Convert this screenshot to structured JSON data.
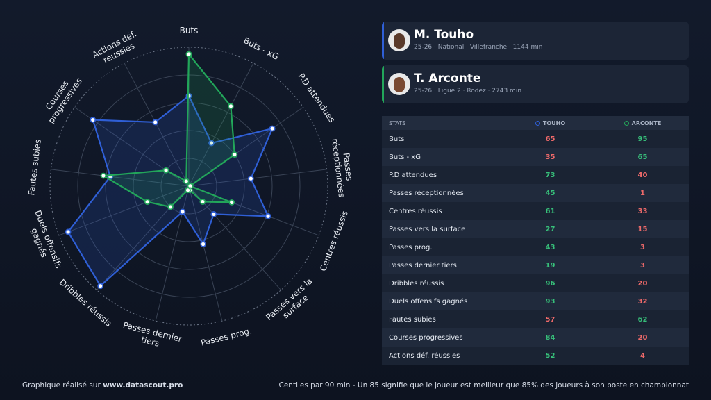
{
  "chart_data": {
    "type": "radar",
    "categories": [
      "Buts",
      "Buts - xG",
      "P.D attendues",
      "Passes réceptionnées",
      "Centres réussis",
      "Passes vers la surface",
      "Passes prog.",
      "Passes dernier tiers",
      "Dribbles réussis",
      "Duels offensifs gagnés",
      "Fautes subies",
      "Courses progressives",
      "Actions déf. réussies"
    ],
    "series": [
      {
        "name": "M. Touho",
        "details": "25-26 · National · Villefranche · 1144 min",
        "color": "#2f5fd6",
        "values": [
          65,
          35,
          73,
          45,
          61,
          27,
          43,
          19,
          96,
          93,
          57,
          84,
          52
        ]
      },
      {
        "name": "T. Arconte",
        "details": "25-26 · Ligue 2 · Rodez · 2743 min",
        "color": "#22a65a",
        "values": [
          95,
          65,
          40,
          1,
          33,
          15,
          3,
          3,
          20,
          32,
          62,
          20,
          4
        ]
      }
    ],
    "rlim": [
      0,
      100
    ],
    "rticks": [
      20,
      40,
      60,
      80,
      100
    ],
    "grid": true,
    "table_header": [
      "STATS",
      "TOUHO",
      "ARCONTE"
    ]
  },
  "footer": {
    "left": "Graphique réalisé sur",
    "site": "www.datascout.pro",
    "note": "Centiles par 90 min - Un 85 signifie que le joueur est meilleur que 85% des joueurs à son poste en championnat"
  }
}
